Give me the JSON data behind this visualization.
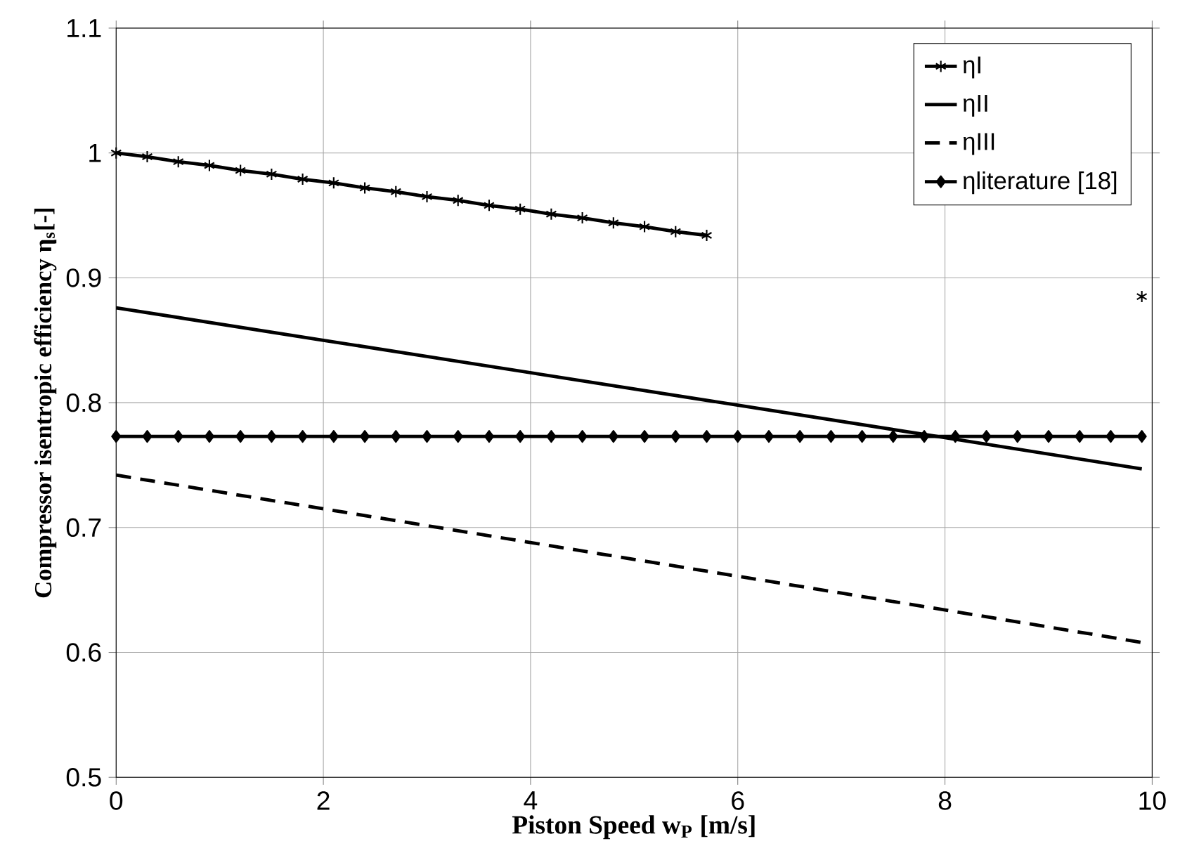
{
  "chart_data": {
    "type": "line",
    "xlabel": "**Piston Speed w$_{P}$ [m/s]**",
    "ylabel": "**Compressor isentropic efficiency η$_{s}$[-]**",
    "xlim": [
      0,
      10
    ],
    "xticks": [
      0,
      2,
      4,
      6,
      8,
      10
    ],
    "ylim": [
      0.5,
      1.1
    ],
    "yticks": [
      0.5,
      0.6,
      0.7,
      0.8,
      0.9,
      1,
      1.1
    ],
    "grid": true,
    "legend": "top right",
    "series": [
      {
        "name": "ηI",
        "color": "#000000",
        "marker": "cross",
        "line_style": "solid",
        "x": [
          0,
          0.3,
          0.6,
          0.9,
          1.2,
          1.5,
          1.8,
          2.1,
          2.4,
          2.7,
          3.0,
          3.3,
          3.6,
          3.9,
          4.2,
          4.5,
          4.8,
          5.1,
          5.4,
          5.7,
          6.0,
          6.3,
          6.6,
          6.9,
          7.2,
          7.5,
          7.8,
          8.1,
          8.4,
          8.7,
          9.0,
          9.3,
          9.6,
          9.9
        ],
        "values": [
          1.0,
          0.997,
          0.993,
          0.99,
          0.986,
          0.983,
          0.979,
          0.976,
          0.972,
          0.969,
          0.965,
          0.962,
          0.958,
          0.955,
          0.951,
          0.948,
          0.944,
          0.941,
          0.937,
          0.934,
          null,
          null,
          null,
          null,
          null,
          null,
          null,
          null,
          null,
          null,
          null,
          null,
          null,
          0.885
        ]
      },
      {
        "name": "ηII",
        "color": "#000000",
        "marker": "none",
        "line_style": "solid",
        "x": [
          0,
          2,
          4,
          6,
          8,
          9.9
        ],
        "values": [
          0.876,
          0.85,
          0.824,
          0.798,
          0.772,
          0.747
        ]
      },
      {
        "name": "ηIII",
        "color": "#000000",
        "marker": "none",
        "line_style": "dashed",
        "x": [
          0,
          2,
          4,
          6,
          8,
          9.9
        ],
        "values": [
          0.742,
          0.715,
          0.688,
          0.661,
          0.634,
          0.608
        ]
      },
      {
        "name": "ηliterature [18]",
        "color": "#000000",
        "marker": "diamond",
        "line_style": "solid",
        "x": [
          0,
          0.3,
          0.6,
          0.9,
          1.2,
          1.5,
          1.8,
          2.1,
          2.4,
          2.7,
          3.0,
          3.3,
          3.6,
          3.9,
          4.2,
          4.5,
          4.8,
          5.1,
          5.4,
          5.7,
          6.0,
          6.3,
          6.6,
          6.9,
          7.2,
          7.5,
          7.8,
          8.1,
          8.4,
          8.7,
          9.0,
          9.3,
          9.6,
          9.9
        ],
        "values": [
          0.773,
          0.773,
          0.773,
          0.773,
          0.773,
          0.773,
          0.773,
          0.773,
          0.773,
          0.773,
          0.773,
          0.773,
          0.773,
          0.773,
          0.773,
          0.773,
          0.773,
          0.773,
          0.773,
          0.773,
          0.773,
          0.773,
          0.773,
          0.773,
          0.773,
          0.773,
          0.773,
          0.773,
          0.773,
          0.773,
          0.773,
          0.773,
          0.773,
          0.773
        ]
      }
    ]
  }
}
